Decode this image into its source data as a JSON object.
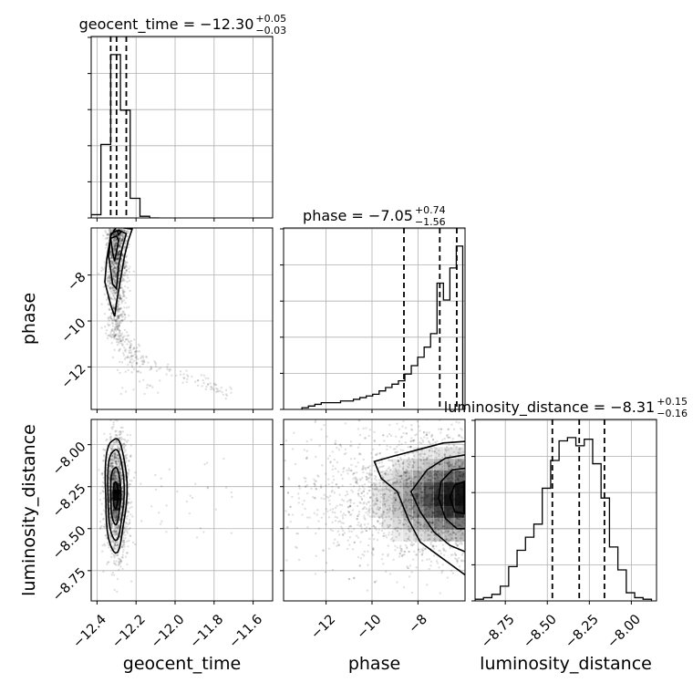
{
  "chart_data": {
    "type": "corner",
    "parameters": [
      "geocent_time",
      "phase",
      "luminosity_distance"
    ],
    "axis_labels": {
      "geocent_time": "geocent_time",
      "phase": "phase",
      "luminosity_distance": "luminosity_distance"
    },
    "ranges": {
      "geocent_time": [
        -12.43,
        -11.5
      ],
      "phase": [
        -13.85,
        -5.95
      ],
      "luminosity_distance": [
        -8.93,
        -7.85
      ]
    },
    "ticks": {
      "geocent_time": [
        -12.4,
        -12.2,
        -12.0,
        -11.8,
        -11.6
      ],
      "phase": [
        -12,
        -10,
        -8
      ],
      "luminosity_distance": [
        -8.75,
        -8.5,
        -8.25,
        -8.0
      ]
    },
    "tick_labels": {
      "geocent_time": [
        "−12.4",
        "−12.2",
        "−12.0",
        "−11.8",
        "−11.6"
      ],
      "phase": [
        "−12",
        "−10",
        "−8"
      ],
      "luminosity_distance": [
        "−8.75",
        "−8.50",
        "−8.25",
        "−8.00"
      ]
    },
    "titles": {
      "geocent_time": {
        "main": "geocent_time = −12.30",
        "sup": "+0.05",
        "sub": "−0.03"
      },
      "phase": {
        "main": "phase = −7.05",
        "sup": "+0.74",
        "sub": "−1.56"
      },
      "luminosity_distance": {
        "main": "luminosity_distance = −8.31",
        "sup": "+0.15",
        "sub": "−0.16"
      }
    },
    "quantiles": {
      "geocent_time": [
        -12.33,
        -12.3,
        -12.25
      ],
      "phase": [
        -8.61,
        -7.05,
        -6.31
      ],
      "luminosity_distance": [
        -8.47,
        -8.31,
        -8.16
      ]
    },
    "histograms": {
      "geocent_time": {
        "edges": [
          -12.43,
          -12.38,
          -12.33,
          -12.28,
          -12.23,
          -12.18,
          -12.13,
          -12.08
        ],
        "counts": [
          0.02,
          0.45,
          1.0,
          0.66,
          0.12,
          0.01,
          0.0
        ]
      },
      "phase": {
        "edges": [
          -13.05,
          -12.77,
          -12.49,
          -12.21,
          -11.93,
          -11.65,
          -11.37,
          -11.09,
          -10.81,
          -10.53,
          -10.25,
          -9.97,
          -9.69,
          -9.41,
          -9.13,
          -8.85,
          -8.57,
          -8.29,
          -8.01,
          -7.73,
          -7.45,
          -7.17,
          -6.89,
          -6.61,
          -6.33,
          -6.05
        ],
        "counts": [
          0.01,
          0.02,
          0.03,
          0.04,
          0.04,
          0.04,
          0.05,
          0.05,
          0.06,
          0.07,
          0.08,
          0.09,
          0.11,
          0.13,
          0.15,
          0.17,
          0.21,
          0.26,
          0.31,
          0.37,
          0.45,
          0.75,
          0.65,
          0.84,
          0.97
        ]
      },
      "luminosity_distance": {
        "edges": [
          -8.93,
          -8.88,
          -8.83,
          -8.78,
          -8.73,
          -8.68,
          -8.63,
          -8.58,
          -8.53,
          -8.48,
          -8.43,
          -8.38,
          -8.33,
          -8.28,
          -8.23,
          -8.18,
          -8.13,
          -8.08,
          -8.03,
          -7.98,
          -7.93,
          -7.88
        ],
        "counts": [
          0.01,
          0.02,
          0.04,
          0.09,
          0.21,
          0.31,
          0.39,
          0.47,
          0.69,
          0.86,
          0.98,
          1.0,
          0.95,
          0.99,
          0.84,
          0.63,
          0.33,
          0.19,
          0.05,
          0.02,
          0.01
        ]
      }
    },
    "scatter_2d": [
      {
        "x": "geocent_time",
        "y": "phase",
        "center": [
          -12.29,
          -6.4
        ],
        "spread": [
          0.04,
          0.7
        ]
      },
      {
        "x": "geocent_time",
        "y": "luminosity_distance",
        "center": [
          -12.3,
          -8.3
        ],
        "spread": [
          0.03,
          0.16
        ]
      },
      {
        "x": "phase",
        "y": "luminosity_distance",
        "center": [
          -6.5,
          -8.31
        ],
        "spread": [
          1.4,
          0.16
        ]
      }
    ],
    "grid": true
  }
}
